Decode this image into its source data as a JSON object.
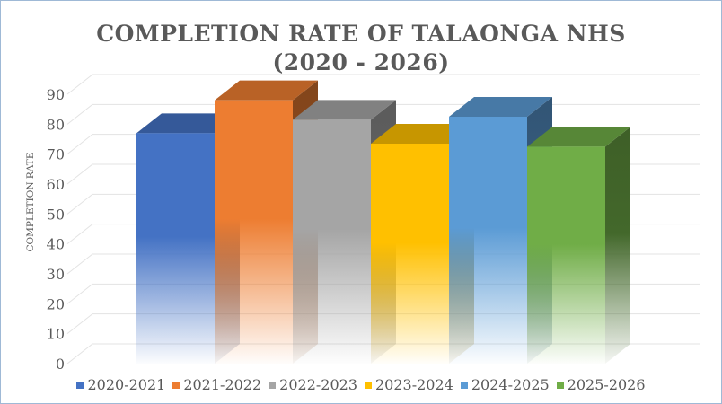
{
  "chart_data": {
    "type": "bar",
    "title_line1": "COMPLETION RATE OF TALAONGA NHS",
    "title_line2": "(2020 - 2026)",
    "ylabel": "COMPLETION RATE",
    "xlabel": "",
    "ylim": [
      0,
      90
    ],
    "yticks": [
      0,
      10,
      20,
      30,
      40,
      50,
      60,
      70,
      80,
      90
    ],
    "grid": true,
    "legend_position": "bottom",
    "series": [
      {
        "name": "2020-2021",
        "value": 77,
        "color": "#4472c4"
      },
      {
        "name": "2021-2022",
        "value": 88,
        "color": "#ed7d31"
      },
      {
        "name": "2022-2023",
        "value": 81.5,
        "color": "#a5a5a5"
      },
      {
        "name": "2023-2024",
        "value": 73.5,
        "color": "#ffc000"
      },
      {
        "name": "2024-2025",
        "value": 82.5,
        "color": "#5b9bd5"
      },
      {
        "name": "2025-2026",
        "value": 72.5,
        "color": "#70ad47"
      }
    ]
  }
}
